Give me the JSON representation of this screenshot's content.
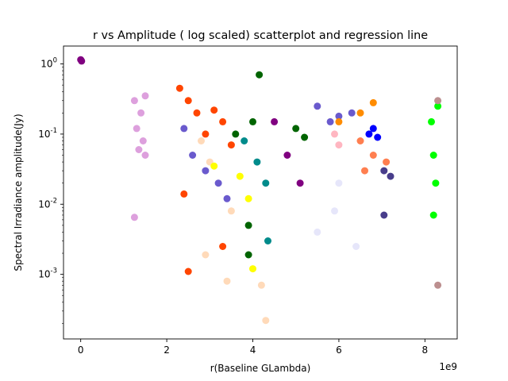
{
  "chart_data": {
    "type": "scatter",
    "title": "r vs Amplitude ( log scaled) scatterplot and regression line",
    "xlabel": "r(Baseline GLambda)",
    "ylabel": "Spectral Irradiance amplitude(Jy)",
    "x_offset_label": "1e9",
    "x_scale": "linear",
    "y_scale": "log",
    "xlim": [
      -400000000.0,
      8750000000.0
    ],
    "ylim": [
      0.00012,
      1.8
    ],
    "grid": false,
    "legend": "none",
    "x_ticks": [
      0,
      2000000000.0,
      4000000000.0,
      6000000000.0,
      8000000000.0
    ],
    "x_tick_labels": [
      "0",
      "2",
      "4",
      "6",
      "8"
    ],
    "y_ticks": [
      0.001,
      0.01,
      0.1,
      1
    ],
    "y_tick_labels": [
      "10^-3",
      "10^-2",
      "10^-1",
      "10^0"
    ],
    "series": [
      {
        "color": "#800080",
        "points": [
          [
            0,
            1.15
          ],
          [
            20000000.0,
            1.1
          ],
          [
            4500000000.0,
            0.15
          ],
          [
            4800000000.0,
            0.05
          ],
          [
            5100000000.0,
            0.02
          ]
        ]
      },
      {
        "color": "#DDA0DD",
        "points": [
          [
            1250000000.0,
            0.3
          ],
          [
            1300000000.0,
            0.12
          ],
          [
            1350000000.0,
            0.06
          ],
          [
            1400000000.0,
            0.2
          ],
          [
            1450000000.0,
            0.08
          ],
          [
            1500000000.0,
            0.35
          ],
          [
            1500000000.0,
            0.05
          ],
          [
            1250000000.0,
            0.0065
          ]
        ]
      },
      {
        "color": "#FF4500",
        "points": [
          [
            2300000000.0,
            0.45
          ],
          [
            2500000000.0,
            0.3
          ],
          [
            2700000000.0,
            0.2
          ],
          [
            2900000000.0,
            0.1
          ],
          [
            3100000000.0,
            0.22
          ],
          [
            3300000000.0,
            0.15
          ],
          [
            3500000000.0,
            0.07
          ],
          [
            2400000000.0,
            0.014
          ],
          [
            2500000000.0,
            0.0011
          ],
          [
            3300000000.0,
            0.0025
          ]
        ]
      },
      {
        "color": "#6A5ACD",
        "points": [
          [
            2400000000.0,
            0.12
          ],
          [
            2600000000.0,
            0.05
          ],
          [
            2900000000.0,
            0.03
          ],
          [
            3200000000.0,
            0.02
          ],
          [
            3400000000.0,
            0.012
          ],
          [
            5500000000.0,
            0.25
          ],
          [
            5800000000.0,
            0.15
          ],
          [
            6000000000.0,
            0.18
          ],
          [
            6300000000.0,
            0.2
          ]
        ]
      },
      {
        "color": "#FFDAB9",
        "points": [
          [
            2800000000.0,
            0.08
          ],
          [
            3000000000.0,
            0.04
          ],
          [
            3500000000.0,
            0.008
          ],
          [
            3400000000.0,
            0.0008
          ],
          [
            2900000000.0,
            0.0019
          ],
          [
            4200000000.0,
            0.0007
          ],
          [
            4300000000.0,
            0.00022
          ]
        ]
      },
      {
        "color": "#FFFF00",
        "points": [
          [
            3100000000.0,
            0.035
          ],
          [
            3700000000.0,
            0.025
          ],
          [
            3900000000.0,
            0.012
          ],
          [
            4000000000.0,
            0.0012
          ]
        ]
      },
      {
        "color": "#006400",
        "points": [
          [
            3600000000.0,
            0.1
          ],
          [
            4000000000.0,
            0.15
          ],
          [
            4150000000.0,
            0.7
          ],
          [
            3900000000.0,
            0.005
          ],
          [
            3900000000.0,
            0.0019
          ],
          [
            5000000000.0,
            0.12
          ],
          [
            5200000000.0,
            0.09
          ]
        ]
      },
      {
        "color": "#008B8B",
        "points": [
          [
            3800000000.0,
            0.08
          ],
          [
            4100000000.0,
            0.04
          ],
          [
            4300000000.0,
            0.02
          ],
          [
            4350000000.0,
            0.003
          ]
        ]
      },
      {
        "color": "#E6E6FA",
        "points": [
          [
            5500000000.0,
            0.004
          ],
          [
            5900000000.0,
            0.008
          ],
          [
            6400000000.0,
            0.0025
          ],
          [
            6000000000.0,
            0.02
          ]
        ]
      },
      {
        "color": "#0000FF",
        "points": [
          [
            6700000000.0,
            0.1
          ],
          [
            6800000000.0,
            0.12
          ],
          [
            6900000000.0,
            0.09
          ]
        ]
      },
      {
        "color": "#FF8C00",
        "points": [
          [
            6000000000.0,
            0.15
          ],
          [
            6500000000.0,
            0.2
          ],
          [
            6800000000.0,
            0.28
          ]
        ]
      },
      {
        "color": "#FFB6C1",
        "points": [
          [
            5900000000.0,
            0.1
          ],
          [
            6000000000.0,
            0.07
          ]
        ]
      },
      {
        "color": "#FF7F50",
        "points": [
          [
            6500000000.0,
            0.08
          ],
          [
            6800000000.0,
            0.05
          ],
          [
            7100000000.0,
            0.04
          ],
          [
            6600000000.0,
            0.03
          ]
        ]
      },
      {
        "color": "#483D8B",
        "points": [
          [
            7050000000.0,
            0.03
          ],
          [
            7050000000.0,
            0.007
          ],
          [
            7200000000.0,
            0.025
          ]
        ]
      },
      {
        "color": "#00FF00",
        "points": [
          [
            8150000000.0,
            0.15
          ],
          [
            8200000000.0,
            0.05
          ],
          [
            8250000000.0,
            0.02
          ],
          [
            8200000000.0,
            0.007
          ],
          [
            8300000000.0,
            0.25
          ]
        ]
      },
      {
        "color": "#BC8F8F",
        "points": [
          [
            8300000000.0,
            0.3
          ],
          [
            8300000000.0,
            0.0007
          ]
        ]
      }
    ]
  }
}
